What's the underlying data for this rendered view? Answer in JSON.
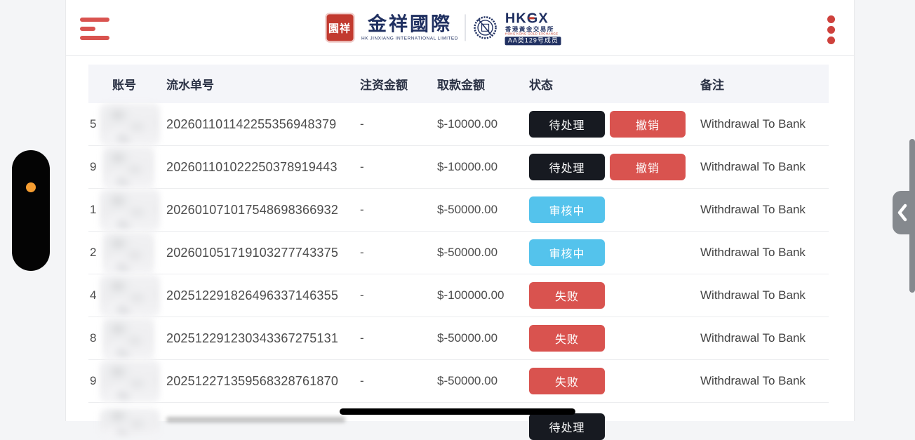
{
  "colors": {
    "accent": "#d9534f",
    "badge_dark": "#171a21",
    "badge_blue": "#54c3ec",
    "badge_red": "#d9534f",
    "navy": "#203061",
    "page_bg": "#f4f5f7",
    "thead_bg": "#f4f5f9"
  },
  "header": {
    "brand": {
      "seal_text": "園祥",
      "name_zh": "金祥國際",
      "name_en": "HK JINXIANG INTERNATIONAL LIMITED",
      "exchange_abbr": "HKGX",
      "exchange_zh": "香港黃金交易所",
      "exchange_en": "HONG KONG GOLD EXCHANGE",
      "member_badge": "AA类129号成员"
    }
  },
  "table": {
    "columns": [
      "账号",
      "流水单号",
      "注资金额",
      "取款金额",
      "状态",
      "备注"
    ],
    "rows": [
      {
        "account": "5",
        "serial": "202601101142255356948379",
        "deposit": "-",
        "amount": "$-10000.00",
        "status": "待处理",
        "status_type": "pending",
        "action": "撤销",
        "remark": "Withdrawal To Bank"
      },
      {
        "account": "9",
        "serial": "202601101022250378919443",
        "deposit": "-",
        "amount": "$-10000.00",
        "status": "待处理",
        "status_type": "pending",
        "action": "撤销",
        "remark": "Withdrawal To Bank"
      },
      {
        "account": "1",
        "serial": "202601071017548698366932",
        "deposit": "-",
        "amount": "$-50000.00",
        "status": "审核中",
        "status_type": "review",
        "remark": "Withdrawal To Bank"
      },
      {
        "account": "2",
        "serial": "202601051719103277743375",
        "deposit": "-",
        "amount": "$-50000.00",
        "status": "审核中",
        "status_type": "review",
        "remark": "Withdrawal To Bank"
      },
      {
        "account": "4",
        "serial": "202512291826496337146355",
        "deposit": "-",
        "amount": "$-100000.00",
        "status": "失败",
        "status_type": "failed",
        "remark": "Withdrawal To Bank"
      },
      {
        "account": "8",
        "serial": "202512291230343367275131",
        "deposit": "-",
        "amount": "$-50000.00",
        "status": "失败",
        "status_type": "failed",
        "remark": "Withdrawal To Bank"
      },
      {
        "account": "9",
        "serial": "202512271359568328761870",
        "deposit": "-",
        "amount": "$-50000.00",
        "status": "失败",
        "status_type": "failed",
        "remark": "Withdrawal To Bank"
      }
    ],
    "partial_row": {
      "status": "待处理",
      "status_type": "pending"
    }
  }
}
